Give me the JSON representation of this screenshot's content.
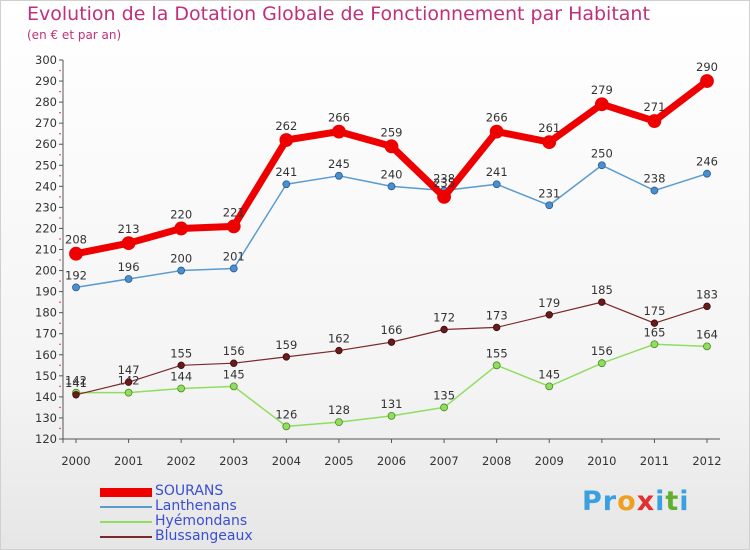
{
  "header": {
    "title": "Evolution de la Dotation Globale de Fonctionnement par Habitant",
    "subtitle": "(en € et par an)"
  },
  "logo": {
    "text": "Proxiti",
    "letters": [
      {
        "ch": "P",
        "color": "#3aa0e0"
      },
      {
        "ch": "r",
        "color": "#3aa0e0"
      },
      {
        "ch": "o",
        "color": "#f0a020"
      },
      {
        "ch": "x",
        "color": "#e03030"
      },
      {
        "ch": "i",
        "color": "#3aa0e0"
      },
      {
        "ch": "t",
        "color": "#60b030"
      },
      {
        "ch": "i",
        "color": "#3aa0e0"
      }
    ]
  },
  "chart_data": {
    "type": "line",
    "title": "Evolution de la Dotation Globale de Fonctionnement par Habitant",
    "subtitle": "(en € et par an)",
    "xlabel": "",
    "ylabel": "",
    "x": [
      "2000",
      "2001",
      "2002",
      "2003",
      "2004",
      "2005",
      "2006",
      "2007",
      "2008",
      "2009",
      "2010",
      "2011",
      "2012"
    ],
    "ylim": [
      120,
      300
    ],
    "yticks": [
      120,
      130,
      140,
      150,
      160,
      170,
      180,
      190,
      200,
      210,
      220,
      230,
      240,
      250,
      260,
      270,
      280,
      290,
      300
    ],
    "grid": false,
    "legend_position": "bottom-left",
    "series": [
      {
        "name": "SOURANS",
        "color": "#ee0000",
        "values": [
          208,
          213,
          220,
          221,
          262,
          266,
          259,
          235,
          266,
          261,
          279,
          271,
          290
        ],
        "labels": [
          "208",
          "213",
          "220",
          "221",
          "262",
          "266",
          "259",
          "235",
          "266",
          "261",
          "279",
          "271",
          "290"
        ]
      },
      {
        "name": "Lanthenans",
        "color": "#5a9bd0",
        "values": [
          192,
          196,
          200,
          201,
          241,
          245,
          240,
          238,
          241,
          231,
          250,
          238,
          246
        ],
        "labels": [
          "192",
          "196",
          "200",
          "201",
          "241",
          "245",
          "240",
          "238",
          "241",
          "231",
          "250",
          "238",
          "246"
        ]
      },
      {
        "name": "Hyémondans",
        "color": "#90dd60",
        "values": [
          142,
          142,
          144,
          145,
          126,
          128,
          131,
          135,
          155,
          145,
          156,
          165,
          164
        ],
        "labels": [
          "142",
          "142",
          "144",
          "145",
          "126",
          "128",
          "131",
          "135",
          "155",
          "145",
          "156",
          "165",
          "164"
        ]
      },
      {
        "name": "Blussangeaux",
        "color": "#7a2a2a",
        "values": [
          141,
          147,
          155,
          156,
          159,
          162,
          166,
          172,
          173,
          179,
          185,
          175,
          183
        ],
        "labels": [
          "141",
          "147",
          "155",
          "156",
          "159",
          "162",
          "166",
          "172",
          "173",
          "179",
          "185",
          "175",
          "183"
        ]
      }
    ]
  }
}
